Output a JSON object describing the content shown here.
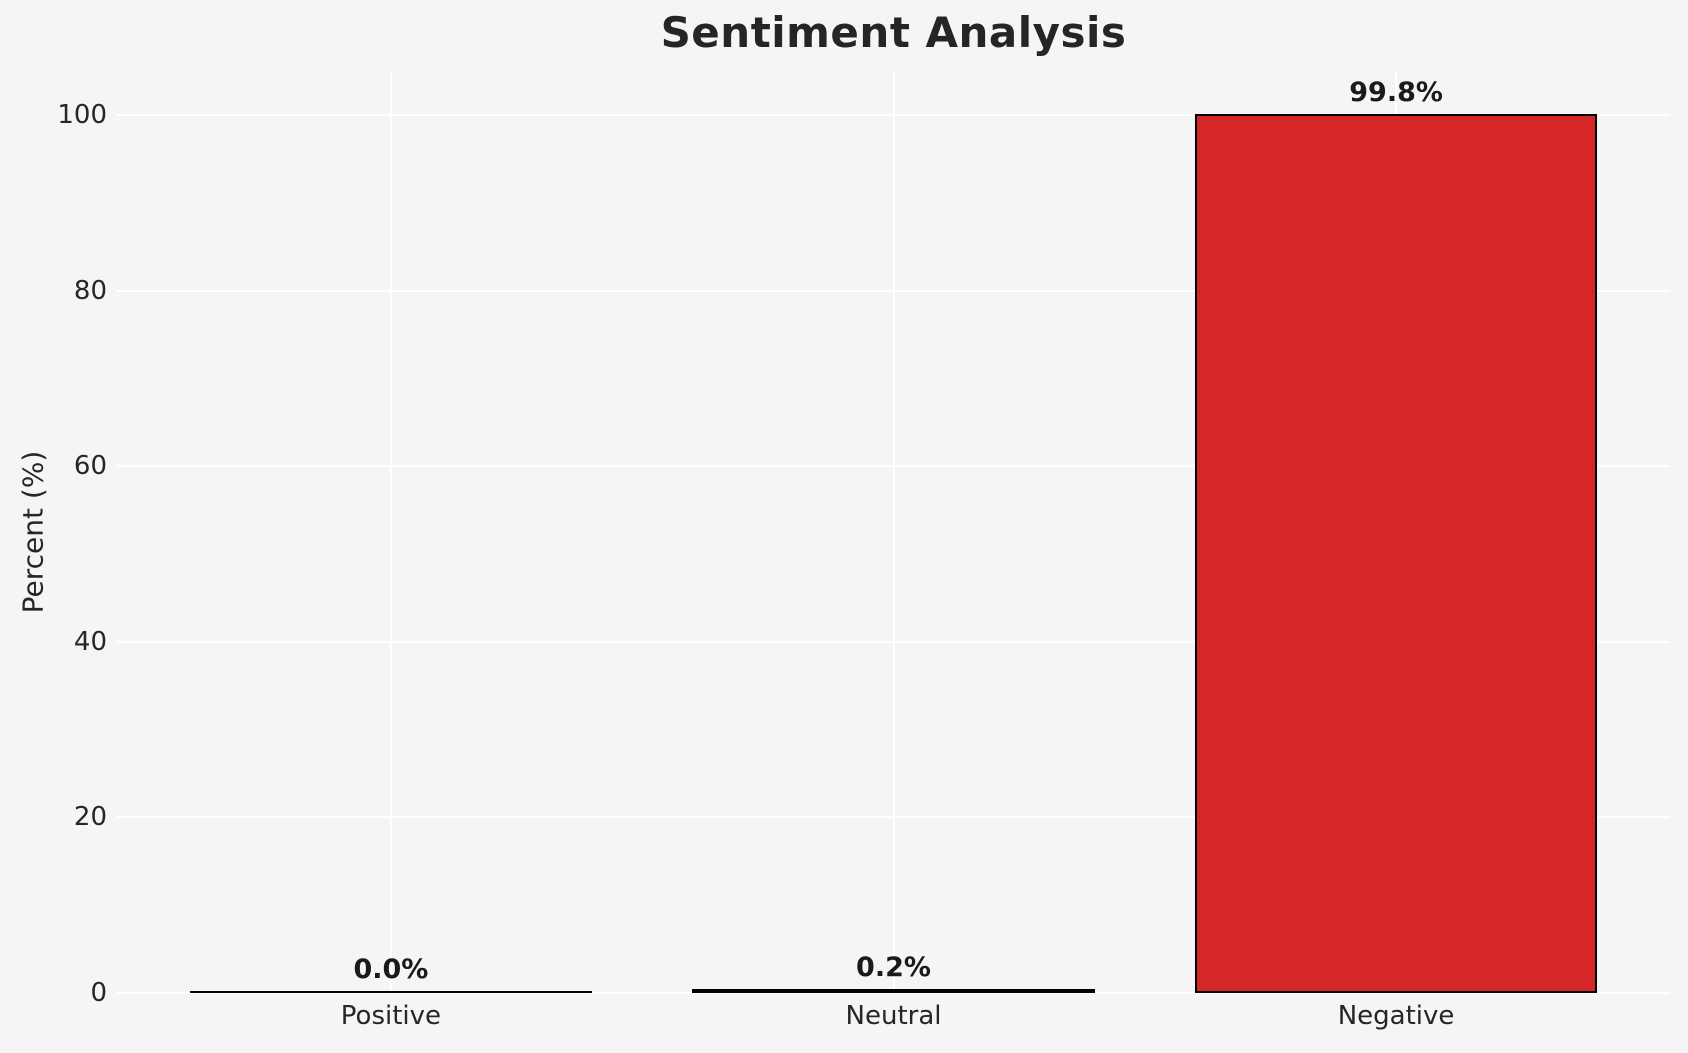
{
  "figure": {
    "background_color": "#f5f5f5",
    "gridline_color": "#ffffff",
    "text_color": "#262626"
  },
  "chart_data": {
    "type": "bar",
    "title": "Sentiment Analysis",
    "xlabel": "",
    "ylabel": "Percent (%)",
    "categories": [
      "Positive",
      "Neutral",
      "Negative"
    ],
    "values": [
      0.0,
      0.2,
      99.8
    ],
    "bar_labels": [
      "0.0%",
      "0.2%",
      "99.8%"
    ],
    "yticks": [
      "0",
      "20",
      "40",
      "60",
      "80",
      "100"
    ],
    "ytick_values": [
      0,
      20,
      40,
      60,
      80,
      100
    ],
    "ylim": [
      0,
      105
    ],
    "grid": "on",
    "legend_position": "none",
    "bar_color": "#d62728",
    "bar_edge_color": "#000000"
  }
}
